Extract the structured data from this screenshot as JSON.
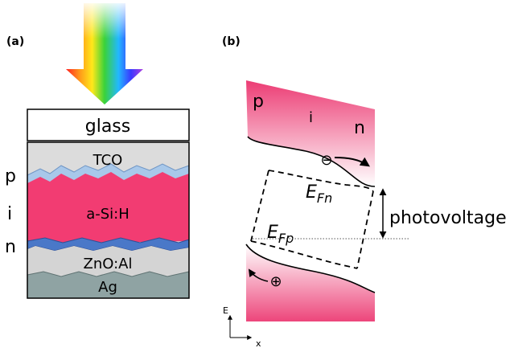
{
  "panel_a": {
    "label": "(a)",
    "layers": {
      "glass": "glass",
      "tco": "TCO",
      "absorber": "a-Si:H",
      "zno": "ZnO:Al",
      "back": "Ag"
    },
    "side_labels": [
      "p",
      "i",
      "n"
    ]
  },
  "panel_b": {
    "label": "(b)",
    "region_labels": [
      "p",
      "i",
      "n"
    ],
    "fermi_n": {
      "base": "E",
      "sub": "Fn"
    },
    "fermi_p": {
      "base": "E",
      "sub": "Fp"
    },
    "photovoltage": "photovoltage",
    "electron_symbol": "⊖",
    "hole_symbol": "⊕",
    "axis_y": "E",
    "axis_x": "x"
  },
  "colors": {
    "absorber": "#f23c72",
    "band_fill": "#f2457c",
    "tco": "#dcdcdc",
    "zno": "#d4d4d4",
    "ag": "#8fa3a3",
    "p_layer": "#a8c8ea",
    "n_layer": "#4a78c8"
  }
}
